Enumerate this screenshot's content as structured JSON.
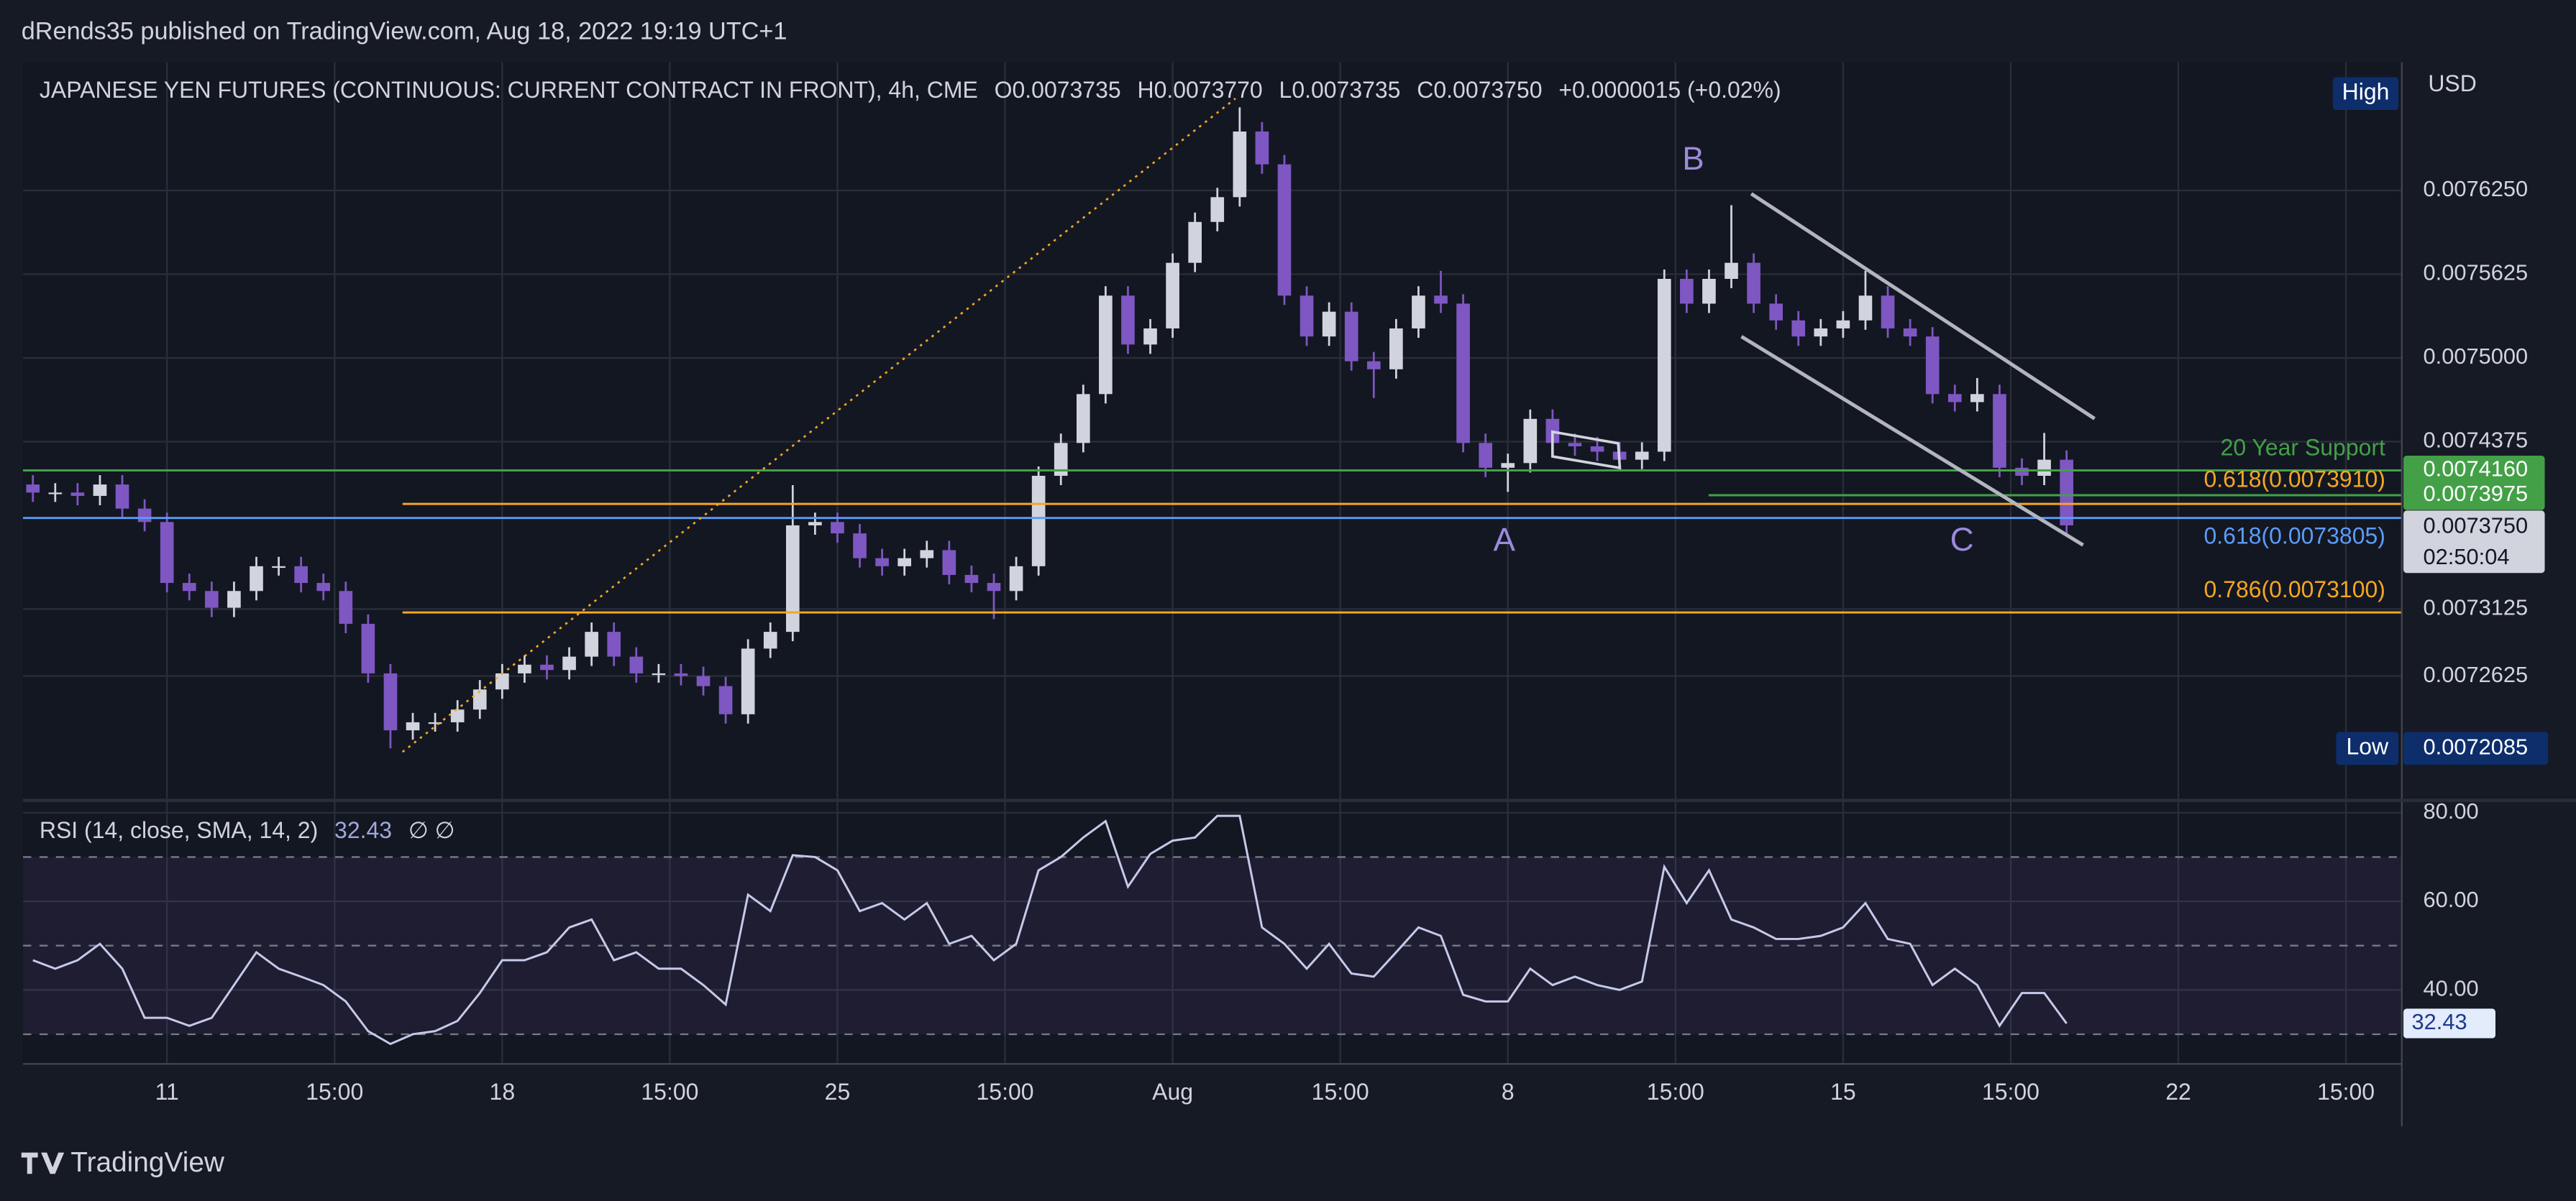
{
  "header": {
    "text": "dRends35 published on TradingView.com, Aug 18, 2022 19:19 UTC+1"
  },
  "footer": {
    "brand": "TradingView"
  },
  "chart_data": [
    {
      "type": "candlestick",
      "title": "JAPANESE YEN FUTURES (CONTINUOUS: CURRENT CONTRACT IN FRONT), 4h, CME",
      "legend_values": [
        "O0.0073735",
        "H0.0073770",
        "L0.0073735",
        "C0.0073750",
        "+0.0000015 (+0.02%)"
      ],
      "open": [
        0.0074055,
        0.0073995,
        0.0073995,
        0.007397,
        0.0074055,
        0.0073875,
        0.0073775,
        0.007332,
        0.007326,
        0.0073135,
        0.007326,
        0.0073445,
        0.0073445,
        0.007332,
        0.007326,
        0.0073015,
        0.0072645,
        0.007222,
        0.007228,
        0.007228,
        0.0072375,
        0.0072525,
        0.0072645,
        0.007271,
        0.007267,
        0.007277,
        0.0072955,
        0.007277,
        0.0072645,
        0.0072645,
        0.0072625,
        0.007255,
        0.007234,
        0.007283,
        0.0072955,
        0.007375,
        0.0073775,
        0.007369,
        0.0073505,
        0.0073445,
        0.0073505,
        0.0073565,
        0.007338,
        0.007332,
        0.007326,
        0.0073445,
        0.007412,
        0.0074365,
        0.007473,
        0.0075465,
        0.00751,
        0.007522,
        0.007571,
        0.0076015,
        0.00762,
        0.007669,
        0.0076445,
        0.0075465,
        0.007516,
        0.0075345,
        0.0074975,
        0.0074915,
        0.007522,
        0.0075465,
        0.0075405,
        0.0074365,
        0.007418,
        0.0074215,
        0.0074545,
        0.0074365,
        0.007434,
        0.00743,
        0.007424,
        0.00743,
        0.007559,
        0.0075405,
        0.007559,
        0.007571,
        0.0075405,
        0.007528,
        0.007516,
        0.007522,
        0.007528,
        0.0075465,
        0.007522,
        0.007516,
        0.007473,
        0.007467,
        0.007473,
        0.007418,
        0.007412,
        0.007424
      ],
      "high": [
        0.0074125,
        0.0074065,
        0.0074065,
        0.0074125,
        0.0074125,
        0.0073945,
        0.0073845,
        0.007339,
        0.007333,
        0.007333,
        0.0073515,
        0.0073515,
        0.0073515,
        0.007339,
        0.007333,
        0.0073085,
        0.0072715,
        0.007235,
        0.007235,
        0.0072445,
        0.0072595,
        0.0072715,
        0.007278,
        0.007278,
        0.007284,
        0.0073025,
        0.0073025,
        0.007284,
        0.0072715,
        0.0072715,
        0.0072695,
        0.007262,
        0.00729,
        0.0073025,
        0.007405,
        0.0073845,
        0.0073845,
        0.007376,
        0.0073575,
        0.0073575,
        0.0073635,
        0.0073635,
        0.007345,
        0.007339,
        0.0073515,
        0.007419,
        0.0074435,
        0.00748,
        0.0075535,
        0.0075535,
        0.007529,
        0.007578,
        0.0076085,
        0.007627,
        0.007687,
        0.007676,
        0.0076515,
        0.0075535,
        0.0075415,
        0.0075415,
        0.0075045,
        0.007529,
        0.0075535,
        0.007565,
        0.0075475,
        0.0074435,
        0.0074285,
        0.0074615,
        0.0074615,
        0.0074435,
        0.007441,
        0.007437,
        0.007437,
        0.007566,
        0.007566,
        0.007566,
        0.007614,
        0.007578,
        0.0075475,
        0.007535,
        0.007529,
        0.007535,
        0.007565,
        0.0075535,
        0.007529,
        0.007523,
        0.00748,
        0.007485,
        0.00748,
        0.007425,
        0.007444,
        0.007431
      ],
      "low": [
        0.0073925,
        0.0073925,
        0.00739,
        0.00739,
        0.0073805,
        0.0073705,
        0.007325,
        0.007319,
        0.0073065,
        0.0073065,
        0.007319,
        0.0073375,
        0.007325,
        0.007319,
        0.0072945,
        0.0072575,
        0.0072085,
        0.007215,
        0.007221,
        0.007221,
        0.0072305,
        0.0072455,
        0.0072575,
        0.00726,
        0.00726,
        0.00727,
        0.00727,
        0.0072575,
        0.0072575,
        0.0072555,
        0.007248,
        0.007227,
        0.007227,
        0.007276,
        0.0072885,
        0.007368,
        0.007362,
        0.0073435,
        0.0073375,
        0.0073375,
        0.0073435,
        0.007331,
        0.007325,
        0.007305,
        0.007319,
        0.0073375,
        0.007405,
        0.0074295,
        0.007466,
        0.007503,
        0.007503,
        0.007515,
        0.007564,
        0.0075945,
        0.007613,
        0.0076375,
        0.0075395,
        0.007509,
        0.007509,
        0.0074905,
        0.00747,
        0.0074845,
        0.007515,
        0.0075335,
        0.0074295,
        0.007411,
        0.0074,
        0.0074145,
        0.0074295,
        0.007427,
        0.007423,
        0.007417,
        0.007417,
        0.007423,
        0.0075335,
        0.0075335,
        0.007552,
        0.0075335,
        0.007521,
        0.007509,
        0.007509,
        0.007515,
        0.007521,
        0.007515,
        0.007509,
        0.007466,
        0.00746,
        0.00746,
        0.007411,
        0.007405,
        0.007405,
        0.007368
      ],
      "close": [
        0.0073995,
        0.0073995,
        0.007397,
        0.0074055,
        0.0073875,
        0.0073775,
        0.007332,
        0.007326,
        0.0073135,
        0.007326,
        0.0073445,
        0.0073445,
        0.007332,
        0.007326,
        0.0073015,
        0.0072645,
        0.007222,
        0.007228,
        0.007228,
        0.0072375,
        0.0072525,
        0.0072645,
        0.007271,
        0.007267,
        0.007277,
        0.0072955,
        0.007277,
        0.0072645,
        0.0072645,
        0.0072625,
        0.007255,
        0.007234,
        0.007283,
        0.0072955,
        0.007375,
        0.0073775,
        0.007369,
        0.0073505,
        0.0073445,
        0.0073505,
        0.0073565,
        0.007338,
        0.007332,
        0.007326,
        0.0073445,
        0.007412,
        0.0074365,
        0.007473,
        0.0075465,
        0.00751,
        0.007522,
        0.007571,
        0.0076015,
        0.00762,
        0.007669,
        0.0076445,
        0.0075465,
        0.007516,
        0.0075345,
        0.0074975,
        0.0074915,
        0.007522,
        0.0075465,
        0.0075405,
        0.0074365,
        0.007418,
        0.0074215,
        0.0074545,
        0.0074365,
        0.007434,
        0.00743,
        0.007424,
        0.00743,
        0.007559,
        0.0075405,
        0.007559,
        0.007571,
        0.0075405,
        0.007528,
        0.007516,
        0.007522,
        0.007528,
        0.0075465,
        0.007522,
        0.007516,
        0.007473,
        0.007467,
        0.007473,
        0.007418,
        0.007412,
        0.007424,
        0.007375
      ],
      "up_color": "#d1d4dc",
      "down_color": "#7e57c2",
      "xlim": [
        -0.44,
        106
      ],
      "xticks": [
        {
          "value": 6,
          "label": "11"
        },
        {
          "value": 13.5,
          "label": "15:00"
        },
        {
          "value": 21,
          "label": "18"
        },
        {
          "value": 28.5,
          "label": "15:00"
        },
        {
          "value": 36,
          "label": "25"
        },
        {
          "value": 43.5,
          "label": "15:00"
        },
        {
          "value": 51,
          "label": "Aug"
        },
        {
          "value": 58.5,
          "label": "15:00"
        },
        {
          "value": 66,
          "label": "8"
        },
        {
          "value": 73.5,
          "label": "15:00"
        },
        {
          "value": 81,
          "label": "15"
        },
        {
          "value": 88.5,
          "label": "15:00"
        },
        {
          "value": 96,
          "label": "22"
        },
        {
          "value": 103.5,
          "label": "15:00"
        }
      ],
      "ylim": [
        0.0071703,
        0.0077206
      ],
      "yticks": [
        {
          "value": 0.007625,
          "label": "0.0076250"
        },
        {
          "value": 0.0075625,
          "label": "0.0075625"
        },
        {
          "value": 0.0075,
          "label": "0.0075000"
        },
        {
          "value": 0.0074375,
          "label": "0.0074375"
        },
        {
          "value": 0.0073125,
          "label": "0.0073125"
        },
        {
          "value": 0.0072625,
          "label": "0.0072625"
        }
      ],
      "grid": true,
      "axis_unit": "USD",
      "levels": [
        {
          "label": "20 Year Support",
          "value": 0.007416,
          "value_label": "0.0074160",
          "color": "#43a047"
        },
        {
          "value": 0.0073975,
          "value_label": "0.0073975",
          "color": "#43a047"
        },
        {
          "label": "0.618(0.0073910)",
          "value": 0.007391,
          "color": "#f5a623"
        },
        {
          "label": "0.618(0.0073805)",
          "value": 0.0073805,
          "color": "#5b9cf6"
        },
        {
          "label": "0.786(0.0073100)",
          "value": 0.00731,
          "color": "#f5a623"
        }
      ],
      "last_price": {
        "value": 0.007375,
        "label": "0.0073750",
        "countdown": "02:50:04"
      },
      "high_marker": {
        "badge": "High"
      },
      "low_marker": {
        "badge": "Low",
        "value": 0.0072085,
        "label": "0.0072085"
      },
      "annotations": [
        "A",
        "B",
        "C"
      ]
    },
    {
      "type": "line",
      "title": "RSI (14, close, SMA, 14, 2)",
      "extra": "∅ ∅",
      "color": "#c5cae9",
      "values": [
        46.7,
        44.8,
        46.7,
        50.4,
        44.8,
        33.7,
        33.7,
        31.9,
        33.7,
        41.1,
        48.5,
        44.8,
        43.0,
        41.1,
        37.4,
        30.7,
        27.8,
        30.0,
        30.7,
        33.0,
        39.3,
        46.7,
        46.7,
        48.5,
        54.1,
        55.9,
        46.7,
        48.5,
        44.8,
        44.8,
        41.1,
        36.7,
        61.5,
        57.8,
        70.4,
        70.0,
        67.0,
        57.8,
        59.6,
        55.9,
        59.6,
        50.4,
        52.2,
        46.7,
        50.4,
        67.0,
        70.0,
        74.4,
        78.1,
        63.3,
        70.7,
        73.7,
        74.4,
        79.3,
        79.3,
        54.1,
        50.4,
        44.8,
        50.4,
        43.7,
        43.0,
        48.5,
        54.1,
        52.2,
        38.9,
        37.4,
        37.4,
        44.8,
        41.1,
        43.0,
        41.1,
        40.0,
        41.9,
        67.8,
        59.6,
        67.0,
        55.9,
        54.1,
        51.5,
        51.5,
        52.2,
        54.1,
        59.6,
        51.5,
        50.4,
        41.1,
        44.8,
        41.1,
        31.9,
        39.3,
        39.3,
        32.43
      ],
      "ylim": [
        23.3,
        82.6
      ],
      "yticks": [
        {
          "value": 80,
          "label": "80.00"
        },
        {
          "value": 60,
          "label": "60.00"
        },
        {
          "value": 40,
          "label": "40.00"
        }
      ],
      "hlines": [
        70,
        50,
        30
      ]
    }
  ]
}
